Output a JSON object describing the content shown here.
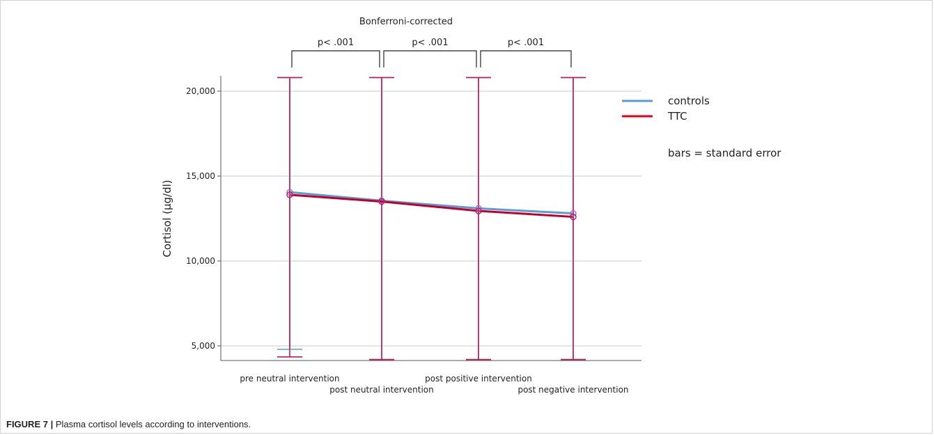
{
  "chart_data": {
    "type": "line",
    "title": "Bonferroni-corrected",
    "xlabel": "",
    "ylabel": "Cortisol (µg/dl)",
    "categories": [
      "pre neutral intervention",
      "post neutral intervention",
      "post positive intervention",
      "post negative intervention"
    ],
    "ylim": [
      4200,
      21800
    ],
    "yticks": [
      5000,
      10000,
      15000,
      20000
    ],
    "ytick_labels": [
      "5,000",
      "10,000",
      "15,000",
      "20,000"
    ],
    "grid": true,
    "legend_position": "right",
    "series": [
      {
        "name": "controls",
        "color": "#5b9bd5",
        "values": [
          14050,
          13550,
          13100,
          12800
        ],
        "err_low": [
          4800,
          4200,
          4200,
          4200
        ],
        "err_high": [
          20800,
          20800,
          20800,
          20800
        ]
      },
      {
        "name": "TTC",
        "color": "#e0001b",
        "values": [
          13900,
          13500,
          12950,
          12600
        ],
        "err_low": [
          4350,
          4200,
          4200,
          4200
        ],
        "err_high": [
          20800,
          20800,
          20800,
          20800
        ]
      }
    ],
    "legend_note": "bars = standard error",
    "comparisons": [
      {
        "from": 0,
        "to": 1,
        "label": "p< .001"
      },
      {
        "from": 1,
        "to": 2,
        "label": "p< .001"
      },
      {
        "from": 2,
        "to": 3,
        "label": "p< .001"
      }
    ]
  },
  "caption": {
    "label": "FIGURE 7 |",
    "text": " Plasma cortisol levels according to interventions."
  }
}
